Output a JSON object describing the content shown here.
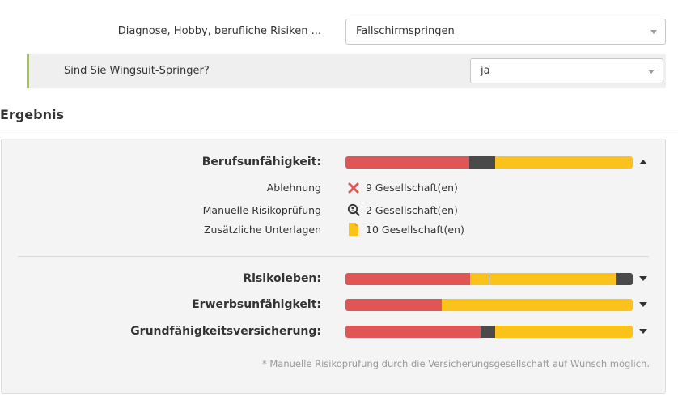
{
  "question1": {
    "label": "Diagnose, Hobby, berufliche Risiken ...",
    "selected": "Fallschirmspringen"
  },
  "question2": {
    "label": "Sind Sie Wingsuit-Springer?",
    "selected": "ja"
  },
  "result": {
    "heading": "Ergebnis",
    "categories": [
      {
        "label": "Berufsunfähigkeit:",
        "bar": {
          "red": 0.43,
          "dark": 0.09,
          "yellow": 0.48
        },
        "expanded": true,
        "details": [
          {
            "label": "Ablehnung",
            "icon": "cross-icon",
            "value": "9 Gesellschaft(en)"
          },
          {
            "label": "Manuelle Risikoprüfung",
            "icon": "magnifier-person-icon",
            "value": "2 Gesellschaft(en)"
          },
          {
            "label": "Zusätzliche Unterlagen",
            "icon": "document-icon",
            "value": "10 Gesellschaft(en)"
          }
        ]
      },
      {
        "label": "Risikoleben:",
        "bar": {
          "red": 0.435,
          "yellow_a": 0.065,
          "yellow_b": 0.44,
          "dark": 0.06
        },
        "expanded": false
      },
      {
        "label": "Erwerbsunfähigkeit:",
        "bar": {
          "red": 0.335,
          "yellow": 0.665
        },
        "expanded": false
      },
      {
        "label": "Grundfähigkeitsversicherung:",
        "bar": {
          "red": 0.47,
          "dark": 0.05,
          "yellow": 0.48
        },
        "expanded": false
      }
    ],
    "footnote": "* Manuelle Risikoprüfung durch die Versicherungsgesellschaft auf Wunsch möglich."
  },
  "colors": {
    "red": "#e05555",
    "dark": "#4a4a4a",
    "yellow": "#fcc21c",
    "accent_green": "#9fc644"
  }
}
